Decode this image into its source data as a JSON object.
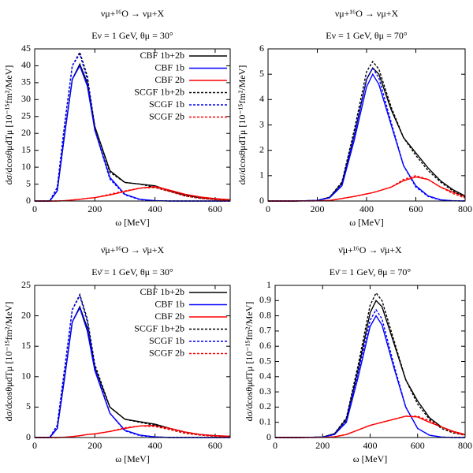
{
  "chart_data": [
    {
      "type": "line",
      "title": "νμ+¹⁶O → νμ+X",
      "subtitle": "Eν = 1 GeV, θμ = 30°",
      "xlabel": "ω [MeV]",
      "ylabel": "dσ/dcosθμdTμ [10⁻¹⁵fm²/MeV]",
      "xlim": [
        0,
        650
      ],
      "xticks": [
        0,
        200,
        400,
        600
      ],
      "ylim": [
        0,
        45
      ],
      "yticks": [
        0,
        5,
        10,
        15,
        20,
        25,
        30,
        35,
        40,
        45
      ],
      "grid": false,
      "legend": "upper right",
      "x": [
        0,
        50,
        75,
        100,
        125,
        150,
        175,
        200,
        250,
        300,
        350,
        400,
        450,
        500,
        550,
        600,
        650
      ],
      "series": [
        {
          "name": "CBF 1b+2b",
          "color": "#000000",
          "dash": false,
          "values": [
            0,
            0,
            3,
            20,
            36,
            40.5,
            35,
            22,
            9,
            5.5,
            5,
            4.5,
            3,
            1.8,
            1,
            0.6,
            0.4
          ]
        },
        {
          "name": "CBF 1b",
          "color": "#0000ff",
          "dash": false,
          "values": [
            0,
            0,
            3,
            20,
            36,
            40,
            34,
            21,
            7,
            2,
            0.5,
            0.1,
            0,
            0,
            0,
            0,
            0
          ]
        },
        {
          "name": "CBF 2b",
          "color": "#ff0000",
          "dash": false,
          "values": [
            0,
            0,
            0,
            0.1,
            0.3,
            0.5,
            0.8,
            1,
            1.8,
            2.8,
            3.8,
            4.3,
            3.2,
            2,
            1.2,
            0.7,
            0.4
          ]
        },
        {
          "name": "SCGF 1b+2b",
          "color": "#000000",
          "dash": true,
          "values": [
            0,
            0,
            4,
            23,
            40,
            44,
            37,
            22,
            8.5,
            5.5,
            5,
            4,
            2.8,
            1.5,
            0.8,
            0.4,
            0.2
          ]
        },
        {
          "name": "SCGF 1b",
          "color": "#0000ff",
          "dash": true,
          "values": [
            0,
            0,
            4,
            23,
            40,
            43.5,
            36,
            21,
            6.5,
            1.8,
            0.4,
            0.1,
            0,
            0,
            0,
            0,
            0
          ]
        },
        {
          "name": "SCGF 2b",
          "color": "#ff0000",
          "dash": true,
          "values": [
            0,
            0,
            0,
            0.1,
            0.3,
            0.5,
            0.8,
            1,
            2,
            3,
            3.8,
            4,
            2.8,
            1.5,
            0.8,
            0.4,
            0.2
          ]
        }
      ]
    },
    {
      "type": "line",
      "title": "νμ+¹⁶O → νμ+X",
      "subtitle": "Eν = 1 GeV, θμ = 70°",
      "xlabel": "ω [MeV]",
      "ylabel": "dσ/dcosθμdTμ [10⁻¹⁵fm²/MeV]",
      "xlim": [
        0,
        800
      ],
      "xticks": [
        0,
        200,
        400,
        600,
        800
      ],
      "ylim": [
        0,
        6
      ],
      "yticks": [
        0,
        1,
        2,
        3,
        4,
        5,
        6
      ],
      "grid": false,
      "x": [
        0,
        100,
        200,
        250,
        300,
        350,
        400,
        425,
        450,
        500,
        550,
        600,
        650,
        700,
        750,
        800
      ],
      "series": [
        {
          "color": "#000000",
          "dash": false,
          "values": [
            0,
            0,
            0.02,
            0.15,
            0.7,
            2.6,
            4.8,
            5.25,
            5,
            3.6,
            2.5,
            1.9,
            1.3,
            0.8,
            0.45,
            0.2
          ]
        },
        {
          "color": "#0000ff",
          "dash": false,
          "values": [
            0,
            0,
            0.02,
            0.13,
            0.6,
            2.4,
            4.5,
            5,
            4.6,
            3,
            1.4,
            0.6,
            0.2,
            0.05,
            0.01,
            0
          ]
        },
        {
          "color": "#ff0000",
          "dash": false,
          "values": [
            0,
            0,
            0.005,
            0.02,
            0.1,
            0.18,
            0.28,
            0.33,
            0.4,
            0.55,
            0.8,
            0.95,
            0.85,
            0.55,
            0.35,
            0.18
          ]
        },
        {
          "color": "#000000",
          "dash": true,
          "values": [
            0,
            0,
            0.02,
            0.15,
            0.75,
            2.8,
            5.1,
            5.5,
            5.2,
            3.7,
            2.5,
            1.8,
            1.2,
            0.75,
            0.4,
            0.15
          ]
        },
        {
          "color": "#0000ff",
          "dash": true,
          "values": [
            0,
            0,
            0.02,
            0.13,
            0.65,
            2.6,
            4.8,
            5.25,
            4.85,
            3.1,
            1.4,
            0.55,
            0.18,
            0.04,
            0.01,
            0
          ]
        },
        {
          "color": "#ff0000",
          "dash": true,
          "values": [
            0,
            0,
            0.005,
            0.02,
            0.1,
            0.18,
            0.28,
            0.33,
            0.4,
            0.55,
            0.85,
            1,
            0.85,
            0.55,
            0.3,
            0.12
          ]
        }
      ]
    },
    {
      "type": "line",
      "title": "ν̄μ+¹⁶O → ν̄μ+X",
      "subtitle": "Eν̄ = 1 GeV, θμ = 30°",
      "xlabel": "ω [MeV]",
      "ylabel": "dσ/dcosθμdTμ [10⁻¹⁵fm²/MeV]",
      "xlim": [
        0,
        650
      ],
      "xticks": [
        0,
        200,
        400,
        600
      ],
      "ylim": [
        0,
        25
      ],
      "yticks": [
        0,
        5,
        10,
        15,
        20,
        25
      ],
      "grid": false,
      "legend": "upper right",
      "x": [
        0,
        50,
        75,
        100,
        125,
        150,
        175,
        200,
        250,
        300,
        350,
        400,
        450,
        500,
        550,
        600,
        650
      ],
      "series": [
        {
          "name": "CBF 1b+2b",
          "color": "#000000",
          "dash": false,
          "values": [
            0,
            0,
            1.5,
            10,
            19,
            21.5,
            18,
            11.5,
            5,
            3,
            2.6,
            2.2,
            1.5,
            0.9,
            0.5,
            0.3,
            0.2
          ]
        },
        {
          "name": "CBF 1b",
          "color": "#0000ff",
          "dash": false,
          "values": [
            0,
            0,
            1.5,
            10,
            19,
            21.3,
            17.5,
            11,
            4,
            1.2,
            0.4,
            0.1,
            0,
            0,
            0,
            0,
            0
          ]
        },
        {
          "name": "CBF 2b",
          "color": "#ff0000",
          "dash": false,
          "values": [
            0,
            0,
            0,
            0.05,
            0.15,
            0.3,
            0.5,
            0.6,
            1,
            1.5,
            1.9,
            2,
            1.5,
            0.9,
            0.5,
            0.3,
            0.2
          ]
        },
        {
          "name": "SCGF 1b+2b",
          "color": "#000000",
          "dash": true,
          "values": [
            0,
            0,
            2,
            11.5,
            21,
            23.5,
            19.5,
            12,
            5,
            3,
            2.5,
            2,
            1.3,
            0.7,
            0.4,
            0.2,
            0.1
          ]
        },
        {
          "name": "SCGF 1b",
          "color": "#0000ff",
          "dash": true,
          "values": [
            0,
            0,
            2,
            11.5,
            21,
            23.3,
            19,
            11.5,
            4,
            1.1,
            0.3,
            0.1,
            0,
            0,
            0,
            0,
            0
          ]
        },
        {
          "name": "SCGF 2b",
          "color": "#ff0000",
          "dash": true,
          "values": [
            0,
            0,
            0,
            0.05,
            0.15,
            0.3,
            0.5,
            0.6,
            1,
            1.6,
            1.9,
            1.8,
            1.3,
            0.7,
            0.4,
            0.2,
            0.1
          ]
        }
      ]
    },
    {
      "type": "line",
      "title": "ν̄μ+¹⁶O → ν̄μ+X",
      "subtitle": "Eν̄ = 1 GeV, θμ = 70°",
      "xlabel": "ω [MeV]",
      "ylabel": "dσ/dcosθμdTμ [10⁻¹⁵fm²/MeV]",
      "xlim": [
        0,
        800
      ],
      "xticks": [
        0,
        200,
        400,
        600,
        800
      ],
      "ylim": [
        0,
        1
      ],
      "yticks": [
        0,
        0.1,
        0.2,
        0.3,
        0.4,
        0.5,
        0.6,
        0.7,
        0.8,
        0.9,
        1
      ],
      "grid": false,
      "x": [
        0,
        100,
        200,
        250,
        300,
        350,
        400,
        425,
        450,
        500,
        550,
        600,
        650,
        700,
        750,
        800
      ],
      "series": [
        {
          "color": "#000000",
          "dash": false,
          "values": [
            0,
            0,
            0.003,
            0.025,
            0.12,
            0.45,
            0.82,
            0.9,
            0.86,
            0.62,
            0.38,
            0.24,
            0.13,
            0.07,
            0.04,
            0.02
          ]
        },
        {
          "color": "#0000ff",
          "dash": false,
          "values": [
            0,
            0,
            0.003,
            0.02,
            0.1,
            0.4,
            0.73,
            0.8,
            0.74,
            0.46,
            0.2,
            0.06,
            0.015,
            0.003,
            0,
            0
          ]
        },
        {
          "color": "#ff0000",
          "dash": false,
          "values": [
            0,
            0,
            0.001,
            0.005,
            0.02,
            0.05,
            0.08,
            0.09,
            0.1,
            0.12,
            0.14,
            0.135,
            0.1,
            0.07,
            0.04,
            0.02
          ]
        },
        {
          "color": "#000000",
          "dash": true,
          "values": [
            0,
            0,
            0.003,
            0.025,
            0.13,
            0.48,
            0.87,
            0.95,
            0.9,
            0.64,
            0.38,
            0.22,
            0.12,
            0.06,
            0.03,
            0.015
          ]
        },
        {
          "color": "#0000ff",
          "dash": true,
          "values": [
            0,
            0,
            0.003,
            0.02,
            0.11,
            0.43,
            0.77,
            0.84,
            0.78,
            0.48,
            0.2,
            0.06,
            0.015,
            0.003,
            0,
            0
          ]
        },
        {
          "color": "#ff0000",
          "dash": true,
          "values": [
            0,
            0,
            0.001,
            0.005,
            0.02,
            0.05,
            0.08,
            0.09,
            0.1,
            0.12,
            0.14,
            0.14,
            0.11,
            0.07,
            0.035,
            0.015
          ]
        }
      ]
    }
  ]
}
